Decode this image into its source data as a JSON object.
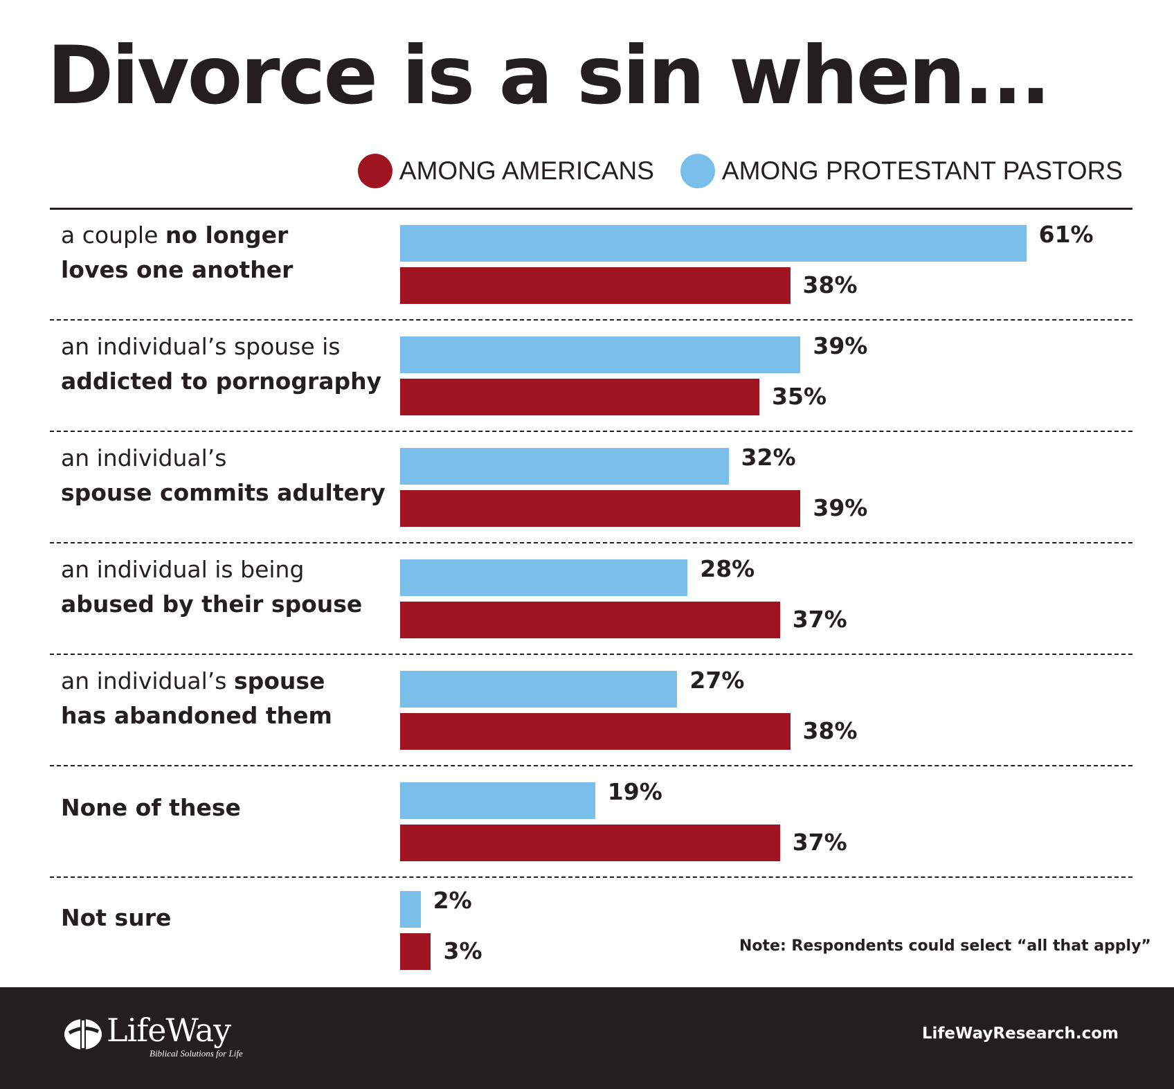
{
  "title": "Divorce is a sin when...",
  "legend": [
    {
      "label": "AMONG AMERICANS",
      "color": "#a01421"
    },
    {
      "label": "AMONG PROTESTANT PASTORS",
      "color": "#79bfe9"
    }
  ],
  "chart_data": {
    "type": "bar",
    "orientation": "horizontal",
    "title": "Divorce is a sin when...",
    "categories": [
      "a couple no longer loves one another",
      "an individual’s spouse is addicted to pornography",
      "an individual’s spouse commits adultery",
      "an individual is being abused by their spouse",
      "an individual’s spouse has abandoned them",
      "None of these",
      "Not sure"
    ],
    "series": [
      {
        "name": "AMONG PROTESTANT PASTORS",
        "color": "#79bfe9",
        "values": [
          61,
          39,
          32,
          28,
          27,
          19,
          2
        ]
      },
      {
        "name": "AMONG AMERICANS",
        "color": "#a01421",
        "values": [
          38,
          35,
          39,
          37,
          38,
          37,
          3
        ]
      }
    ],
    "value_labels": {
      "pastors": [
        "61%",
        "39%",
        "32%",
        "28%",
        "27%",
        "19%",
        "2%"
      ],
      "americans": [
        "38%",
        "35%",
        "39%",
        "37%",
        "38%",
        "37%",
        "3%"
      ]
    },
    "grid": false,
    "legend_position": "top-right"
  },
  "labels": [
    [
      {
        "t": "a couple ",
        "b": false
      },
      {
        "t": "no longer",
        "b": true
      },
      {
        "t": "\n",
        "b": false
      },
      {
        "t": "loves one another",
        "b": true
      }
    ],
    [
      {
        "t": "an individual’s spouse is",
        "b": false
      },
      {
        "t": "\n",
        "b": false
      },
      {
        "t": "addicted to pornography",
        "b": true
      }
    ],
    [
      {
        "t": "an individual’s",
        "b": false
      },
      {
        "t": "\n",
        "b": false
      },
      {
        "t": "spouse commits adultery",
        "b": true
      }
    ],
    [
      {
        "t": "an individual is being",
        "b": false
      },
      {
        "t": "\n",
        "b": false
      },
      {
        "t": "abused by their spouse",
        "b": true
      }
    ],
    [
      {
        "t": "an individual’s ",
        "b": false
      },
      {
        "t": "spouse",
        "b": true
      },
      {
        "t": "\n",
        "b": false
      },
      {
        "t": "has abandoned them",
        "b": true
      }
    ],
    [
      {
        "t": "None of these",
        "b": true
      }
    ],
    [
      {
        "t": "Not sure",
        "b": true
      }
    ]
  ],
  "note": "Note: Respondents could select “all that apply”",
  "footer": {
    "logo_name": "LifeWay",
    "logo_tagline": "Biblical Solutions for Life",
    "site": "LifeWayResearch.com"
  }
}
